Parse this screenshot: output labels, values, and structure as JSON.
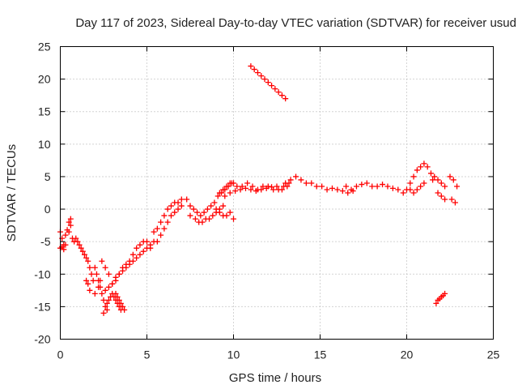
{
  "chart_data": {
    "type": "scatter",
    "title": "Day 117 of 2023, Sidereal Day-to-day VTEC variation (SDTVAR) for receiver usud",
    "xlabel": "GPS time / hours",
    "ylabel": "SDTVAR / TECUs",
    "xlim": [
      0,
      25
    ],
    "ylim": [
      -20,
      25
    ],
    "xticks": [
      0,
      5,
      10,
      15,
      20,
      25
    ],
    "yticks": [
      -20,
      -15,
      -10,
      -5,
      0,
      5,
      10,
      15,
      20,
      25
    ],
    "xtick_labels": [
      "0",
      "5",
      "10",
      "15",
      "20",
      "25"
    ],
    "ytick_labels": [
      "-20",
      "-15",
      "-10",
      "-5",
      "0",
      "5",
      "10",
      "15",
      "20",
      "25"
    ],
    "grid": true,
    "marker": "+",
    "color": "#ff0000",
    "series": [
      {
        "name": "SDTVAR",
        "x": [
          0.0,
          0.1,
          0.2,
          0.3,
          0.4,
          0.5,
          0.6,
          0.7,
          0.8,
          0.9,
          1.0,
          1.1,
          1.2,
          1.3,
          1.4,
          1.5,
          1.6,
          1.7,
          1.8,
          1.9,
          0.0,
          0.1,
          0.2,
          0.3,
          0.5,
          0.6,
          2.0,
          2.1,
          2.2,
          2.3,
          2.4,
          2.5,
          2.6,
          2.7,
          2.8,
          2.9,
          3.0,
          3.1,
          3.2,
          3.3,
          3.4,
          3.5,
          1.5,
          1.6,
          1.7,
          2.0,
          2.2,
          2.3,
          2.4,
          2.6,
          2.8,
          3.0,
          3.2,
          3.4,
          3.6,
          3.8,
          4.0,
          4.2,
          4.4,
          4.6,
          4.8,
          5.0,
          5.2,
          2.6,
          2.8,
          3.0,
          3.2,
          3.4,
          3.6,
          3.8,
          4.0,
          4.2,
          4.4,
          4.6,
          4.8,
          5.0,
          3.2,
          3.3,
          3.4,
          3.5,
          3.6,
          3.7,
          2.5,
          2.7,
          5.6,
          5.8,
          6.0,
          6.2,
          6.4,
          6.6,
          6.8,
          7.0,
          5.4,
          5.6,
          5.8,
          6.0,
          6.2,
          6.4,
          6.6,
          6.8,
          7.0,
          5.2,
          5.4,
          7.3,
          7.5,
          7.7,
          7.9,
          8.1,
          8.3,
          8.5,
          8.7,
          8.9,
          9.1,
          9.3,
          9.5,
          9.7,
          9.9,
          7.5,
          7.8,
          8.0,
          8.2,
          8.4,
          8.6,
          8.8,
          9.0,
          9.2,
          9.4,
          9.2,
          9.4,
          9.6,
          9.8,
          10.0,
          10.2,
          10.5,
          10.8,
          11.1,
          11.4,
          11.7,
          12.0,
          12.3,
          12.6,
          12.9,
          13.2,
          9.5,
          9.8,
          10.1,
          10.4,
          10.7,
          11.0,
          11.3,
          11.6,
          11.9,
          12.2,
          12.5,
          12.8,
          13.1,
          9.2,
          9.4,
          9.6,
          9.8,
          10.0,
          9.0,
          11.0,
          11.2,
          11.4,
          11.6,
          11.8,
          12.0,
          12.2,
          12.4,
          12.6,
          12.8,
          13.0,
          13.0,
          13.3,
          13.6,
          13.9,
          14.2,
          14.5,
          14.8,
          15.1,
          15.4,
          15.7,
          16.0,
          16.3,
          16.6,
          16.9,
          16.5,
          16.8,
          17.1,
          17.4,
          17.7,
          18.0,
          18.3,
          18.6,
          18.9,
          19.2,
          19.5,
          19.8,
          20.0,
          20.2,
          20.4,
          20.6,
          20.8,
          21.0,
          21.2,
          21.4,
          21.6,
          21.8,
          22.0,
          22.2,
          20.2,
          20.4,
          20.6,
          20.8,
          21.0,
          21.5,
          21.8,
          22.0,
          22.2,
          22.5,
          22.7,
          22.9,
          22.6,
          22.8,
          21.7,
          21.8,
          21.9,
          22.0,
          22.1,
          22.2
        ],
        "y": [
          -3.5,
          -4.5,
          -5.5,
          -4.0,
          -3.2,
          -2.0,
          -1.5,
          -4.5,
          -5.0,
          -4.5,
          -5.0,
          -5.5,
          -6.0,
          -6.5,
          -7.0,
          -7.5,
          -8.0,
          -9.0,
          -10.0,
          -11.0,
          -6.0,
          -5.8,
          -6.2,
          -5.5,
          -3.5,
          -2.5,
          -9.0,
          -10.0,
          -11.0,
          -12.0,
          -13.0,
          -14.0,
          -15.0,
          -14.5,
          -14.0,
          -13.5,
          -13.0,
          -13.5,
          -14.0,
          -14.5,
          -15.0,
          -15.5,
          -11.0,
          -11.5,
          -12.5,
          -13.0,
          -12.0,
          -11.0,
          -8.0,
          -9.0,
          -10.0,
          -11.5,
          -11.0,
          -10.0,
          -9.5,
          -9.0,
          -8.5,
          -8.0,
          -7.5,
          -7.0,
          -6.5,
          -6.0,
          -5.5,
          -12.5,
          -12.0,
          -11.5,
          -10.5,
          -10.0,
          -9.0,
          -8.5,
          -8.0,
          -7.0,
          -6.0,
          -5.5,
          -5.0,
          -5.0,
          -13.0,
          -13.5,
          -14.0,
          -14.5,
          -15.0,
          -15.5,
          -16.0,
          -15.5,
          -5.0,
          -4.0,
          -3.0,
          -2.0,
          -1.0,
          -0.5,
          0.0,
          0.5,
          -3.5,
          -3.0,
          -2.0,
          -1.0,
          0.0,
          0.5,
          1.0,
          1.0,
          1.5,
          -6.0,
          -5.0,
          1.5,
          0.5,
          0.0,
          -0.5,
          -1.0,
          -0.5,
          0.0,
          0.5,
          1.0,
          2.0,
          2.5,
          3.0,
          3.5,
          4.0,
          -1.0,
          -1.5,
          -2.0,
          -2.0,
          -1.5,
          -1.5,
          -1.0,
          -0.5,
          0.0,
          0.5,
          2.5,
          3.0,
          3.5,
          4.0,
          4.0,
          3.5,
          3.5,
          4.0,
          3.5,
          3.0,
          3.5,
          3.5,
          3.0,
          3.0,
          3.5,
          4.0,
          2.0,
          2.5,
          2.8,
          3.0,
          3.2,
          3.0,
          2.8,
          3.0,
          3.2,
          3.4,
          3.5,
          3.0,
          3.5,
          -0.5,
          -1.0,
          -1.0,
          -0.5,
          -1.5,
          0.0,
          22.0,
          21.5,
          21.0,
          20.5,
          20.0,
          19.5,
          19.0,
          18.5,
          18.0,
          17.5,
          17.0,
          4.0,
          4.5,
          5.0,
          4.5,
          4.0,
          4.0,
          3.5,
          3.5,
          3.0,
          3.2,
          3.0,
          2.8,
          2.5,
          2.8,
          3.5,
          3.0,
          3.5,
          3.8,
          4.0,
          3.5,
          3.5,
          3.8,
          3.5,
          3.2,
          3.0,
          2.5,
          3.0,
          4.0,
          5.0,
          6.0,
          6.5,
          7.0,
          6.5,
          5.5,
          5.0,
          4.5,
          4.0,
          3.5,
          3.0,
          2.5,
          3.0,
          3.5,
          4.0,
          4.5,
          2.5,
          2.0,
          1.5,
          5.0,
          4.5,
          3.5,
          1.5,
          1.0,
          -14.5,
          -14.0,
          -13.8,
          -13.5,
          -13.3,
          -13.0
        ]
      }
    ]
  }
}
